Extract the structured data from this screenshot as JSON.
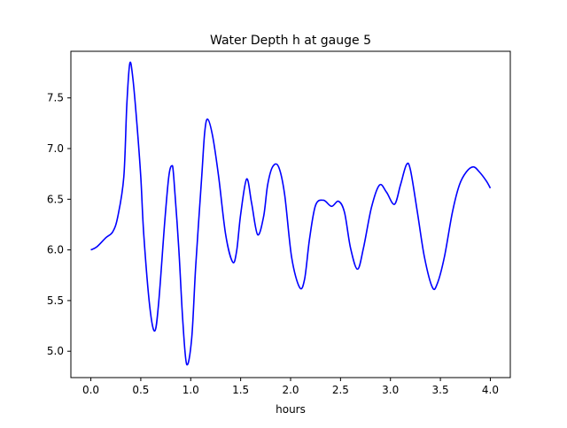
{
  "chart_data": {
    "type": "line",
    "title": "Water Depth h at gauge 5",
    "xlabel": "hours",
    "ylabel": "",
    "xlim": [
      -0.2,
      4.2
    ],
    "ylim": [
      4.74,
      7.96
    ],
    "xticks": [
      0.0,
      0.5,
      1.0,
      1.5,
      2.0,
      2.5,
      3.0,
      3.5,
      4.0
    ],
    "xtick_labels": [
      "0.0",
      "0.5",
      "1.0",
      "1.5",
      "2.0",
      "2.5",
      "3.0",
      "3.5",
      "4.0"
    ],
    "yticks": [
      5.0,
      5.5,
      6.0,
      6.5,
      7.0,
      7.5
    ],
    "ytick_labels": [
      "5.0",
      "5.5",
      "6.0",
      "6.5",
      "7.0",
      "7.5"
    ],
    "grid": false,
    "series": [
      {
        "name": "h",
        "color": "#0000ff",
        "x": [
          0,
          0.06,
          0.15,
          0.22,
          0.27,
          0.33,
          0.36,
          0.39,
          0.42,
          0.46,
          0.5,
          0.53,
          0.59,
          0.64,
          0.68,
          0.74,
          0.78,
          0.81,
          0.83,
          0.88,
          0.92,
          0.96,
          1.01,
          1.05,
          1.11,
          1.14,
          1.17,
          1.22,
          1.28,
          1.35,
          1.42,
          1.46,
          1.5,
          1.56,
          1.61,
          1.67,
          1.73,
          1.77,
          1.82,
          1.88,
          1.94,
          2.01,
          2.09,
          2.14,
          2.19,
          2.25,
          2.33,
          2.41,
          2.48,
          2.54,
          2.6,
          2.67,
          2.73,
          2.81,
          2.89,
          2.96,
          3.04,
          3.1,
          3.16,
          3.2,
          3.27,
          3.34,
          3.42,
          3.47,
          3.54,
          3.62,
          3.69,
          3.76,
          3.83,
          3.89,
          3.96,
          4.0
        ],
        "y": [
          6.0,
          6.03,
          6.12,
          6.18,
          6.33,
          6.72,
          7.43,
          7.84,
          7.7,
          7.26,
          6.72,
          6.15,
          5.44,
          5.2,
          5.49,
          6.28,
          6.72,
          6.83,
          6.72,
          6.02,
          5.31,
          4.87,
          5.13,
          5.84,
          6.72,
          7.16,
          7.29,
          7.12,
          6.72,
          6.15,
          5.88,
          5.99,
          6.35,
          6.7,
          6.46,
          6.15,
          6.33,
          6.64,
          6.82,
          6.82,
          6.55,
          5.93,
          5.63,
          5.71,
          6.11,
          6.44,
          6.49,
          6.43,
          6.48,
          6.37,
          6.02,
          5.81,
          6.02,
          6.42,
          6.64,
          6.57,
          6.45,
          6.64,
          6.84,
          6.79,
          6.37,
          5.93,
          5.63,
          5.67,
          5.93,
          6.37,
          6.64,
          6.77,
          6.82,
          6.77,
          6.68,
          6.61
        ]
      }
    ]
  }
}
